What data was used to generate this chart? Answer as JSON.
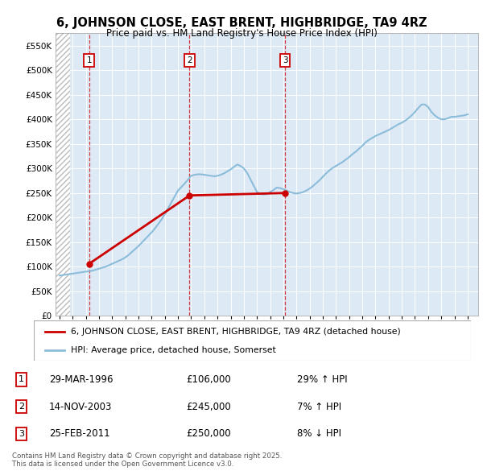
{
  "title": "6, JOHNSON CLOSE, EAST BRENT, HIGHBRIDGE, TA9 4RZ",
  "subtitle": "Price paid vs. HM Land Registry's House Price Index (HPI)",
  "legend_line1": "6, JOHNSON CLOSE, EAST BRENT, HIGHBRIDGE, TA9 4RZ (detached house)",
  "legend_line2": "HPI: Average price, detached house, Somerset",
  "footer": "Contains HM Land Registry data © Crown copyright and database right 2025.\nThis data is licensed under the Open Government Licence v3.0.",
  "transactions": [
    {
      "num": 1,
      "date": "29-MAR-1996",
      "price": 106000,
      "hpi_pct": "29% ↑ HPI",
      "year": 1996.25
    },
    {
      "num": 2,
      "date": "14-NOV-2003",
      "price": 245000,
      "hpi_pct": "7% ↑ HPI",
      "year": 2003.88
    },
    {
      "num": 3,
      "date": "25-FEB-2011",
      "price": 250000,
      "hpi_pct": "8% ↓ HPI",
      "year": 2011.14
    }
  ],
  "hpi_years": [
    1994,
    1994.25,
    1994.5,
    1994.75,
    1995,
    1995.25,
    1995.5,
    1995.75,
    1996,
    1996.25,
    1996.5,
    1996.75,
    1997,
    1997.25,
    1997.5,
    1997.75,
    1998,
    1998.25,
    1998.5,
    1998.75,
    1999,
    1999.25,
    1999.5,
    1999.75,
    2000,
    2000.25,
    2000.5,
    2000.75,
    2001,
    2001.25,
    2001.5,
    2001.75,
    2002,
    2002.25,
    2002.5,
    2002.75,
    2003,
    2003.25,
    2003.5,
    2003.75,
    2004,
    2004.25,
    2004.5,
    2004.75,
    2005,
    2005.25,
    2005.5,
    2005.75,
    2006,
    2006.25,
    2006.5,
    2006.75,
    2007,
    2007.25,
    2007.5,
    2007.75,
    2008,
    2008.25,
    2008.5,
    2008.75,
    2009,
    2009.25,
    2009.5,
    2009.75,
    2010,
    2010.25,
    2010.5,
    2010.75,
    2011,
    2011.25,
    2011.5,
    2011.75,
    2012,
    2012.25,
    2012.5,
    2012.75,
    2013,
    2013.25,
    2013.5,
    2013.75,
    2014,
    2014.25,
    2014.5,
    2014.75,
    2015,
    2015.25,
    2015.5,
    2015.75,
    2016,
    2016.25,
    2016.5,
    2016.75,
    2017,
    2017.25,
    2017.5,
    2017.75,
    2018,
    2018.25,
    2018.5,
    2018.75,
    2019,
    2019.25,
    2019.5,
    2019.75,
    2020,
    2020.25,
    2020.5,
    2020.75,
    2021,
    2021.25,
    2021.5,
    2021.75,
    2022,
    2022.25,
    2022.5,
    2022.75,
    2023,
    2023.25,
    2023.5,
    2023.75,
    2024,
    2024.25,
    2024.5,
    2024.75,
    2025
  ],
  "hpi_values": [
    82000,
    83000,
    84000,
    85000,
    86000,
    87000,
    88000,
    89000,
    90000,
    91000,
    92000,
    94000,
    96000,
    98000,
    100000,
    103000,
    106000,
    109000,
    112000,
    115000,
    119000,
    124000,
    130000,
    136000,
    142000,
    149000,
    156000,
    163000,
    170000,
    178000,
    187000,
    196000,
    207000,
    219000,
    231000,
    243000,
    255000,
    262000,
    269000,
    277000,
    285000,
    287000,
    288000,
    288000,
    287000,
    286000,
    285000,
    284000,
    285000,
    287000,
    290000,
    294000,
    298000,
    303000,
    308000,
    305000,
    300000,
    291000,
    278000,
    265000,
    252000,
    248000,
    247000,
    248000,
    252000,
    256000,
    261000,
    260000,
    258000,
    255000,
    252000,
    250000,
    249000,
    250000,
    252000,
    255000,
    259000,
    264000,
    270000,
    276000,
    283000,
    290000,
    296000,
    301000,
    305000,
    309000,
    313000,
    318000,
    323000,
    329000,
    334000,
    340000,
    346000,
    353000,
    358000,
    362000,
    366000,
    369000,
    372000,
    375000,
    378000,
    382000,
    386000,
    390000,
    393000,
    397000,
    402000,
    408000,
    415000,
    423000,
    430000,
    430000,
    425000,
    415000,
    408000,
    403000,
    400000,
    400000,
    402000,
    405000,
    405000,
    406000,
    407000,
    408000,
    410000
  ],
  "price_years": [
    1996.25,
    2003.88,
    2011.14
  ],
  "price_values": [
    106000,
    245000,
    250000
  ],
  "hpi_color": "#8bbcda",
  "price_color": "#cc0000",
  "dashed_color": "#cc0000",
  "background_color": "#ddeaf5",
  "ylim": [
    0,
    575000
  ],
  "yticks": [
    0,
    50000,
    100000,
    150000,
    200000,
    250000,
    300000,
    350000,
    400000,
    450000,
    500000,
    550000
  ],
  "xlim": [
    1993.7,
    2025.8
  ],
  "xticks": [
    1994,
    1995,
    1996,
    1997,
    1998,
    1999,
    2000,
    2001,
    2002,
    2003,
    2004,
    2005,
    2006,
    2007,
    2008,
    2009,
    2010,
    2011,
    2012,
    2013,
    2014,
    2015,
    2016,
    2017,
    2018,
    2019,
    2020,
    2021,
    2022,
    2023,
    2024,
    2025
  ],
  "hatch_end": 1994.8
}
